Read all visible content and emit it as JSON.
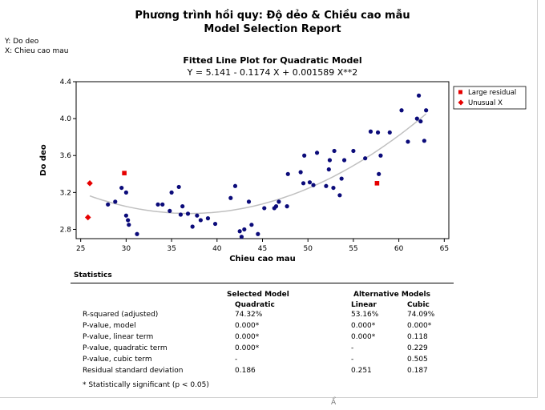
{
  "report": {
    "title_line1": "Phương trình hồi quy: Độ dẻo & Chiều cao mẫu",
    "title_line2": "Model Selection Report",
    "y_tag": "Y: Do deo",
    "x_tag": "X: Chieu cao mau",
    "bottom_fragment": "Ẩ"
  },
  "chart_data": {
    "type": "scatter",
    "title": "Fitted Line Plot for Quadratic Model",
    "equation": "Y  =  5.141 - 0.1174 X + 0.001589 X**2",
    "xlabel": "Chieu cao mau",
    "ylabel": "Do deo",
    "xlim": [
      24.5,
      65.5
    ],
    "ylim": [
      2.7,
      4.4
    ],
    "xticks": [
      25,
      30,
      35,
      40,
      45,
      50,
      55,
      60,
      65
    ],
    "yticks": [
      2.8,
      3.2,
      3.6,
      4.0,
      4.4
    ],
    "grid": false,
    "fit": {
      "a": 5.141,
      "b": -0.1174,
      "c": 0.001589,
      "x_range": [
        26,
        63
      ],
      "color": "#c0c0c0"
    },
    "point_color": "#0b0b7a",
    "points": [
      [
        28.0,
        3.07
      ],
      [
        28.8,
        3.1
      ],
      [
        29.5,
        3.25
      ],
      [
        30.0,
        3.2
      ],
      [
        30.0,
        2.95
      ],
      [
        30.2,
        2.9
      ],
      [
        30.3,
        2.85
      ],
      [
        31.2,
        2.75
      ],
      [
        33.5,
        3.07
      ],
      [
        34.0,
        3.07
      ],
      [
        34.8,
        3.0
      ],
      [
        35.0,
        3.2
      ],
      [
        35.8,
        3.26
      ],
      [
        36.0,
        2.96
      ],
      [
        36.2,
        3.05
      ],
      [
        36.8,
        2.97
      ],
      [
        37.3,
        2.83
      ],
      [
        37.8,
        2.95
      ],
      [
        38.2,
        2.9
      ],
      [
        39.0,
        2.92
      ],
      [
        39.8,
        2.86
      ],
      [
        41.5,
        3.14
      ],
      [
        42.0,
        3.27
      ],
      [
        42.5,
        2.78
      ],
      [
        42.7,
        2.72
      ],
      [
        43.0,
        2.8
      ],
      [
        43.5,
        3.1
      ],
      [
        43.8,
        2.85
      ],
      [
        44.5,
        2.75
      ],
      [
        45.2,
        3.03
      ],
      [
        46.3,
        3.03
      ],
      [
        46.5,
        3.05
      ],
      [
        46.8,
        3.1
      ],
      [
        47.7,
        3.05
      ],
      [
        47.8,
        3.4
      ],
      [
        49.2,
        3.42
      ],
      [
        49.5,
        3.3
      ],
      [
        49.6,
        3.6
      ],
      [
        50.2,
        3.31
      ],
      [
        50.6,
        3.28
      ],
      [
        51.0,
        3.63
      ],
      [
        52.0,
        3.27
      ],
      [
        52.3,
        3.45
      ],
      [
        52.4,
        3.55
      ],
      [
        52.8,
        3.25
      ],
      [
        52.9,
        3.65
      ],
      [
        53.5,
        3.17
      ],
      [
        53.7,
        3.35
      ],
      [
        54.0,
        3.55
      ],
      [
        55.0,
        3.65
      ],
      [
        56.3,
        3.57
      ],
      [
        56.9,
        3.86
      ],
      [
        57.7,
        3.85
      ],
      [
        57.8,
        3.4
      ],
      [
        58.0,
        3.6
      ],
      [
        59.0,
        3.85
      ],
      [
        60.3,
        4.09
      ],
      [
        61.0,
        3.75
      ],
      [
        62.0,
        4.0
      ],
      [
        62.2,
        4.25
      ],
      [
        62.4,
        3.97
      ],
      [
        62.8,
        3.76
      ],
      [
        63.0,
        4.09
      ]
    ],
    "large_residuals": [
      [
        29.8,
        3.41
      ],
      [
        57.6,
        3.3
      ]
    ],
    "unusual_x": [
      [
        26.0,
        3.3
      ],
      [
        25.8,
        2.93
      ]
    ],
    "legend": {
      "position": "top-right",
      "entries": [
        {
          "label": "Large residual",
          "marker": "square",
          "color": "#e60000"
        },
        {
          "label": "Unusual X",
          "marker": "diamond",
          "color": "#e60000"
        }
      ]
    }
  },
  "statistics": {
    "section_title": "Statistics",
    "selected_header": "Selected Model",
    "alternative_header": "Alternative Models",
    "model_headers": [
      "Quadratic",
      "Linear",
      "Cubic"
    ],
    "rows": [
      {
        "label": "R-squared (adjusted)",
        "values": [
          "74.32%",
          "53.16%",
          "74.09%"
        ]
      },
      {
        "label": "P-value, model",
        "values": [
          "0.000*",
          "0.000*",
          "0.000*"
        ]
      },
      {
        "label": "P-value, linear term",
        "values": [
          "0.000*",
          "0.000*",
          "0.118"
        ]
      },
      {
        "label": "P-value, quadratic term",
        "values": [
          "0.000*",
          "-",
          "0.229"
        ]
      },
      {
        "label": "P-value, cubic term",
        "values": [
          "-",
          "-",
          "0.505"
        ]
      },
      {
        "label": "Residual standard deviation",
        "values": [
          "0.186",
          "0.251",
          "0.187"
        ]
      }
    ],
    "footnote": "* Statistically significant (p < 0.05)"
  }
}
